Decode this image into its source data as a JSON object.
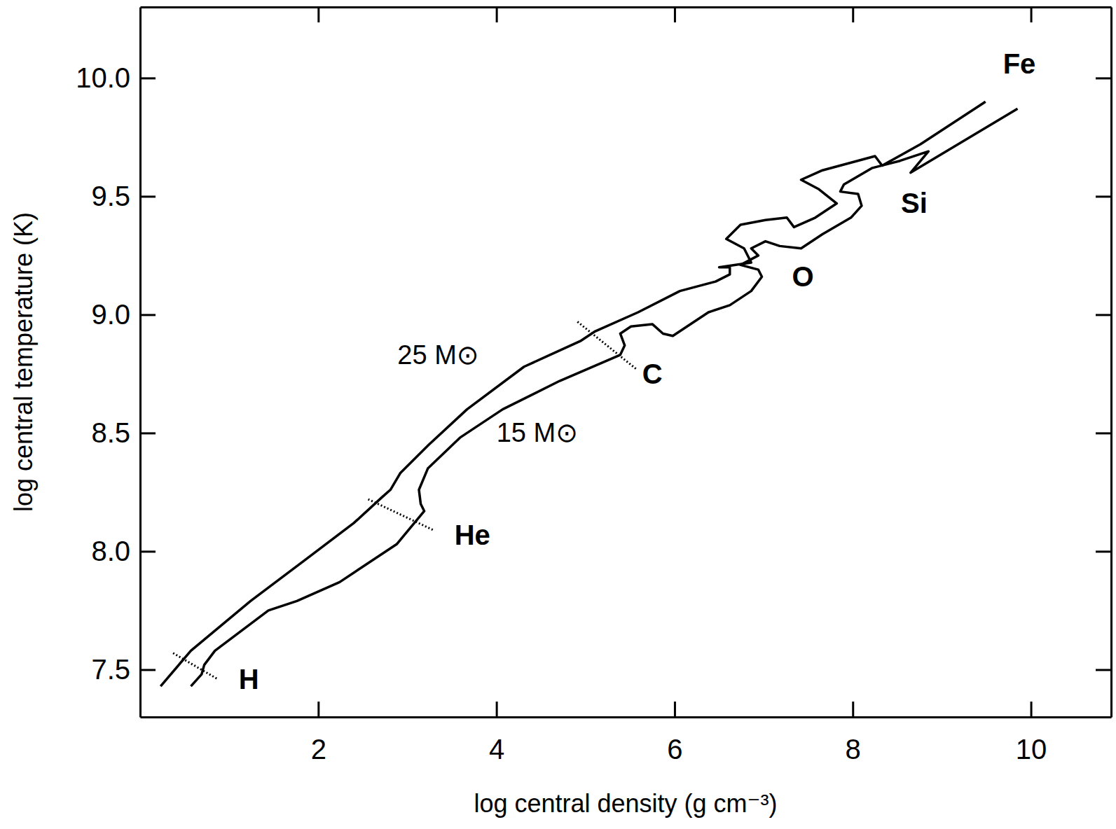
{
  "chart_data": {
    "type": "line",
    "xlabel": "log central density (g cm⁻³)",
    "ylabel": "log central temperature (K)",
    "xlim": [
      0,
      10.9
    ],
    "ylim": [
      7.3,
      10.3
    ],
    "xticks": [
      2,
      4,
      6,
      8,
      10
    ],
    "yticks": [
      7.5,
      {
        "value": 8.0,
        "label": "8.0"
      },
      8.5,
      {
        "value": 9.0,
        "label": "9.0"
      },
      9.5,
      {
        "value": 10.0,
        "label": "10.0"
      }
    ],
    "grid": false,
    "series": [
      {
        "name": "25 M⊙",
        "color": "#000000",
        "line_style": "solid",
        "x": [
          0.23,
          0.57,
          1.24,
          1.84,
          2.4,
          2.72,
          2.81,
          2.92,
          3.24,
          3.67,
          4.31,
          4.95,
          5.11,
          5.59,
          6.06,
          6.46,
          6.62,
          6.62,
          6.5,
          6.86,
          6.78,
          6.58,
          6.74,
          7.02,
          7.26,
          7.34,
          7.58,
          7.82,
          7.62,
          7.42,
          7.66,
          8.25,
          8.33,
          8.76,
          9.49
        ],
        "values": [
          7.43,
          7.58,
          7.79,
          7.96,
          8.12,
          8.23,
          8.26,
          8.33,
          8.45,
          8.6,
          8.78,
          8.89,
          8.93,
          9.01,
          9.1,
          9.14,
          9.17,
          9.2,
          9.2,
          9.22,
          9.28,
          9.32,
          9.38,
          9.4,
          9.41,
          9.37,
          9.41,
          9.47,
          9.53,
          9.57,
          9.61,
          9.67,
          9.63,
          9.72,
          9.9
        ]
      },
      {
        "name": "15 M⊙",
        "color": "#000000",
        "line_style": "solid",
        "x": [
          0.57,
          0.69,
          0.72,
          0.84,
          1.44,
          1.76,
          2.24,
          2.88,
          3.19,
          3.15,
          3.13,
          3.23,
          3.59,
          4.07,
          4.71,
          5.39,
          5.44,
          5.39,
          5.51,
          5.75,
          5.87,
          5.98,
          6.38,
          6.62,
          6.86,
          6.98,
          6.94,
          6.74,
          6.94,
          6.86,
          7.02,
          7.18,
          7.42,
          7.66,
          7.98,
          8.1,
          8.06,
          7.86,
          7.9,
          8.22,
          8.53,
          8.85,
          8.65,
          9.85
        ],
        "values": [
          7.43,
          7.48,
          7.52,
          7.58,
          7.75,
          7.79,
          7.87,
          8.03,
          8.17,
          8.2,
          8.26,
          8.35,
          8.48,
          8.6,
          8.72,
          8.83,
          8.87,
          8.92,
          8.95,
          8.96,
          8.92,
          8.91,
          9.01,
          9.04,
          9.1,
          9.16,
          9.19,
          9.21,
          9.25,
          9.28,
          9.31,
          9.29,
          9.28,
          9.34,
          9.41,
          9.46,
          9.51,
          9.52,
          9.55,
          9.62,
          9.65,
          9.69,
          9.6,
          9.87
        ]
      }
    ],
    "burning_stages": [
      {
        "label": "H",
        "x": 1.22,
        "y": 7.45,
        "mark_x": [
          0.37,
          0.87
        ],
        "mark_y": [
          7.57,
          7.46
        ]
      },
      {
        "label": "He",
        "x": 3.73,
        "y": 8.06,
        "mark_x": [
          2.56,
          3.29
        ],
        "mark_y": [
          8.22,
          8.09
        ]
      },
      {
        "label": "C",
        "x": 5.75,
        "y": 8.74,
        "mark_x": [
          4.91,
          5.57
        ],
        "mark_y": [
          8.97,
          8.77
        ]
      },
      {
        "label": "O",
        "x": 7.44,
        "y": 9.15
      },
      {
        "label": "Si",
        "x": 8.69,
        "y": 9.46
      },
      {
        "label": "Fe",
        "x": 9.87,
        "y": 10.05
      }
    ]
  }
}
